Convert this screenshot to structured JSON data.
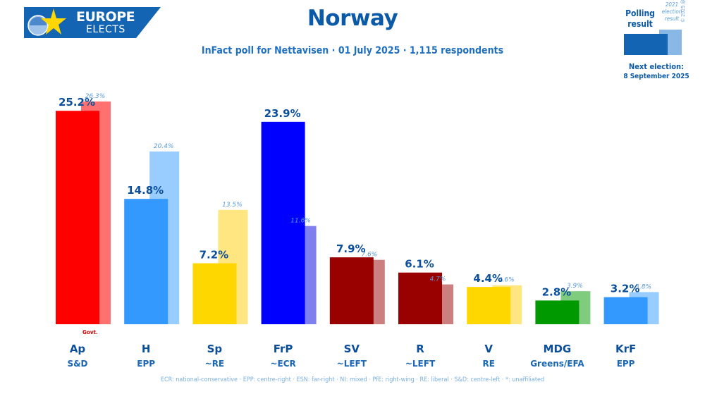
{
  "header": {
    "logo_line1": "EUROPE",
    "logo_line2": "ELECTS",
    "title": "Norway",
    "subtitle": "InFact poll for Nettavisen · 01 July 2025 · 1,115 respondents"
  },
  "legend": {
    "poll_label_line1": "Polling",
    "poll_label_line2": "result",
    "prev_label_line1": "2021",
    "prev_label_line2": "election",
    "prev_label_line3": "result",
    "copyright": "© 2025 @EuropeElects",
    "next_election_label": "Next election:",
    "next_election_date": "8 September 2025"
  },
  "govt_label": "Govt.",
  "footer": "ECR: national-conservative · EPP: centre-right · ESN: far-right · NI: mixed · PfE: right-wing · RE: liberal · S&D: centre-left · *: unaffiliated",
  "chart_data": {
    "type": "bar",
    "title": "Norway",
    "ylim": [
      0,
      26.3
    ],
    "grid": false,
    "categories": [
      "Ap",
      "H",
      "Sp",
      "FrP",
      "SV",
      "R",
      "V",
      "MDG",
      "KrF"
    ],
    "groups": [
      "S&D",
      "EPP",
      "~RE",
      "~ECR",
      "~LEFT",
      "~LEFT",
      "RE",
      "Greens/EFA",
      "EPP"
    ],
    "series": [
      {
        "values": [
          25.2,
          14.8,
          7.2,
          23.9,
          7.9,
          6.1,
          4.4,
          2.8,
          3.2
        ],
        "labels": [
          "25.2%",
          "14.8%",
          "7.2%",
          "23.9%",
          "7.9%",
          "6.1%",
          "4.4%",
          "2.8%",
          "3.2%"
        ]
      },
      {
        "values": [
          26.3,
          20.4,
          13.5,
          11.6,
          7.6,
          4.7,
          4.6,
          3.9,
          3.8
        ],
        "labels": [
          "26.3%",
          "20.4%",
          "13.5%",
          "11.6%",
          "7.6%",
          "4.7%",
          "4.6%",
          "3.9%",
          "3.8%"
        ]
      }
    ],
    "colors": [
      "#ff0000",
      "#3399ff",
      "#ffd700",
      "#0000ff",
      "#990000",
      "#990000",
      "#ffd700",
      "#009900",
      "#3399ff"
    ],
    "prev_colors": [
      "#ff7070",
      "#99ccff",
      "#ffe680",
      "#7f7ff0",
      "#cc7f7f",
      "#cc7f7f",
      "#ffe680",
      "#7fcc7f",
      "#99ccff"
    ]
  }
}
